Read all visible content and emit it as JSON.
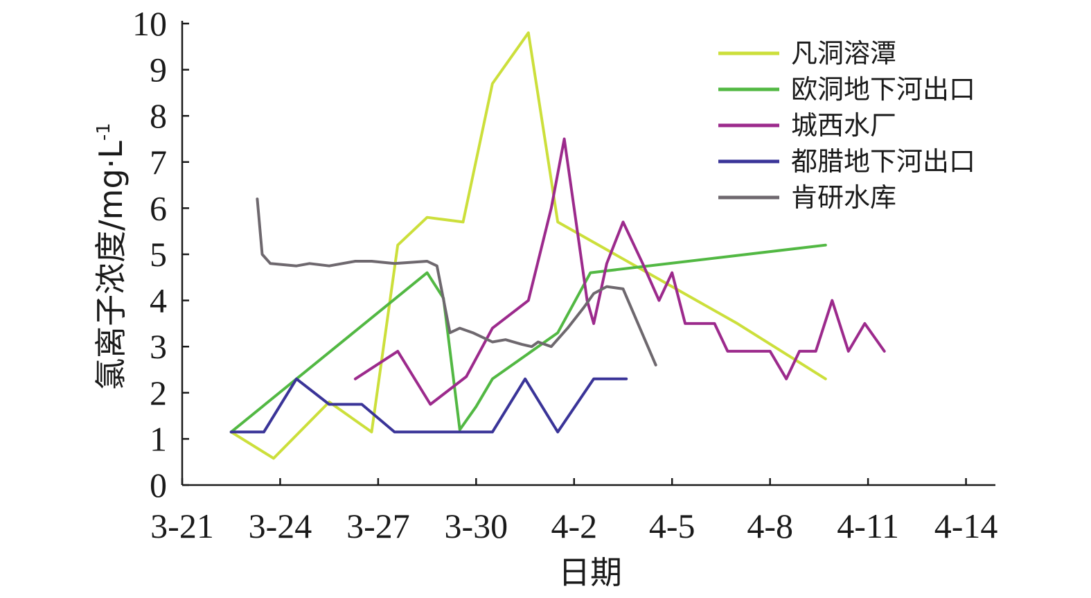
{
  "chart_data": {
    "type": "line",
    "title": "",
    "xlabel": "日期",
    "ylabel": "氯离子浓度/mg·L",
    "ylabel_sup": "-1",
    "x_ticks": [
      "3-21",
      "3-24",
      "3-27",
      "3-30",
      "4-2",
      "4-5",
      "4-8",
      "4-11",
      "4-14"
    ],
    "x_tick_days": [
      0,
      3,
      6,
      9,
      12,
      15,
      18,
      21,
      24
    ],
    "y_ticks": [
      0,
      1,
      2,
      3,
      4,
      5,
      6,
      7,
      8,
      9,
      10
    ],
    "xlim": [
      0,
      24.9
    ],
    "ylim": [
      0,
      10
    ],
    "legend_position": "top-right",
    "series": [
      {
        "name": "凡洞溶潭",
        "color": "#ccdf3b",
        "points": [
          [
            1.5,
            1.15
          ],
          [
            2.8,
            0.58
          ],
          [
            4.5,
            1.8
          ],
          [
            5.8,
            1.15
          ],
          [
            6.6,
            5.2
          ],
          [
            7.5,
            5.8
          ],
          [
            8.6,
            5.7
          ],
          [
            9.5,
            8.7
          ],
          [
            10.6,
            9.8
          ],
          [
            11.5,
            5.7
          ],
          [
            17.0,
            3.5
          ],
          [
            19.7,
            2.3
          ]
        ]
      },
      {
        "name": "欧洞地下河出口",
        "color": "#52b843",
        "points": [
          [
            1.5,
            1.15
          ],
          [
            7.5,
            4.6
          ],
          [
            8.0,
            4.05
          ],
          [
            8.5,
            1.2
          ],
          [
            9.0,
            1.7
          ],
          [
            9.5,
            2.3
          ],
          [
            10.5,
            2.8
          ],
          [
            11.5,
            3.3
          ],
          [
            12.5,
            4.6
          ],
          [
            19.7,
            5.2
          ]
        ]
      },
      {
        "name": "城西水厂",
        "color": "#9c2a8c",
        "points": [
          [
            5.3,
            2.3
          ],
          [
            6.6,
            2.9
          ],
          [
            7.6,
            1.75
          ],
          [
            8.7,
            2.35
          ],
          [
            9.5,
            3.4
          ],
          [
            10.6,
            4.0
          ],
          [
            11.3,
            6.0
          ],
          [
            11.7,
            7.5
          ],
          [
            12.0,
            6.0
          ],
          [
            12.4,
            4.0
          ],
          [
            12.6,
            3.5
          ],
          [
            13.0,
            4.8
          ],
          [
            13.5,
            5.7
          ],
          [
            14.1,
            4.8
          ],
          [
            14.6,
            4.0
          ],
          [
            15.0,
            4.6
          ],
          [
            15.4,
            3.5
          ],
          [
            16.3,
            3.5
          ],
          [
            16.7,
            2.9
          ],
          [
            17.5,
            2.9
          ],
          [
            18.0,
            2.9
          ],
          [
            18.5,
            2.3
          ],
          [
            18.9,
            2.9
          ],
          [
            19.4,
            2.9
          ],
          [
            19.9,
            4.0
          ],
          [
            20.4,
            2.9
          ],
          [
            20.9,
            3.5
          ],
          [
            21.5,
            2.9
          ]
        ]
      },
      {
        "name": "都腊地下河出口",
        "color": "#3a3498",
        "points": [
          [
            1.5,
            1.15
          ],
          [
            2.5,
            1.15
          ],
          [
            3.5,
            2.3
          ],
          [
            4.5,
            1.75
          ],
          [
            5.5,
            1.75
          ],
          [
            6.5,
            1.15
          ],
          [
            9.5,
            1.15
          ],
          [
            10.5,
            2.3
          ],
          [
            11.5,
            1.15
          ],
          [
            12.6,
            2.3
          ],
          [
            13.6,
            2.3
          ]
        ]
      },
      {
        "name": "肯研水库",
        "color": "#6e686e",
        "points": [
          [
            2.3,
            6.2
          ],
          [
            2.45,
            5.0
          ],
          [
            2.7,
            4.8
          ],
          [
            3.5,
            4.75
          ],
          [
            3.9,
            4.8
          ],
          [
            4.5,
            4.75
          ],
          [
            5.3,
            4.85
          ],
          [
            5.8,
            4.85
          ],
          [
            6.5,
            4.8
          ],
          [
            7.5,
            4.85
          ],
          [
            7.8,
            4.75
          ],
          [
            8.2,
            3.3
          ],
          [
            8.5,
            3.4
          ],
          [
            8.9,
            3.3
          ],
          [
            9.5,
            3.1
          ],
          [
            9.9,
            3.15
          ],
          [
            10.4,
            3.05
          ],
          [
            10.7,
            3.0
          ],
          [
            10.9,
            3.1
          ],
          [
            11.1,
            3.05
          ],
          [
            11.3,
            3.0
          ],
          [
            11.8,
            3.4
          ],
          [
            12.3,
            3.85
          ],
          [
            12.6,
            4.15
          ],
          [
            13.0,
            4.3
          ],
          [
            13.5,
            4.25
          ],
          [
            14.5,
            2.6
          ]
        ]
      }
    ]
  }
}
